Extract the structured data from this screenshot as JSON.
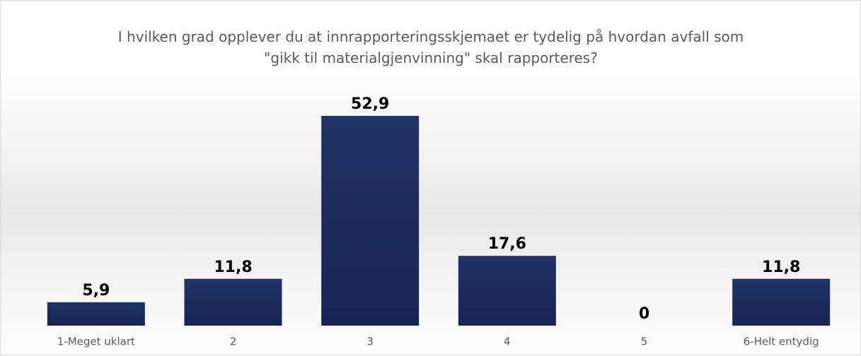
{
  "chart_data": {
    "type": "bar",
    "title": "I hvilken grad opplever du at innrapporteringsskjemaet er tydelig på hvordan avfall som \"gikk til materialgjenvinning\" skal rapporteres?",
    "categories": [
      "1-Meget uklart",
      "2",
      "3",
      "4",
      "5",
      "6-Helt entydig"
    ],
    "values": [
      5.9,
      11.8,
      52.9,
      17.6,
      0,
      11.8
    ],
    "value_labels": [
      "5,9",
      "11,8",
      "52,9",
      "17,6",
      "0",
      "11,8"
    ],
    "color": "#1c2d5e"
  }
}
